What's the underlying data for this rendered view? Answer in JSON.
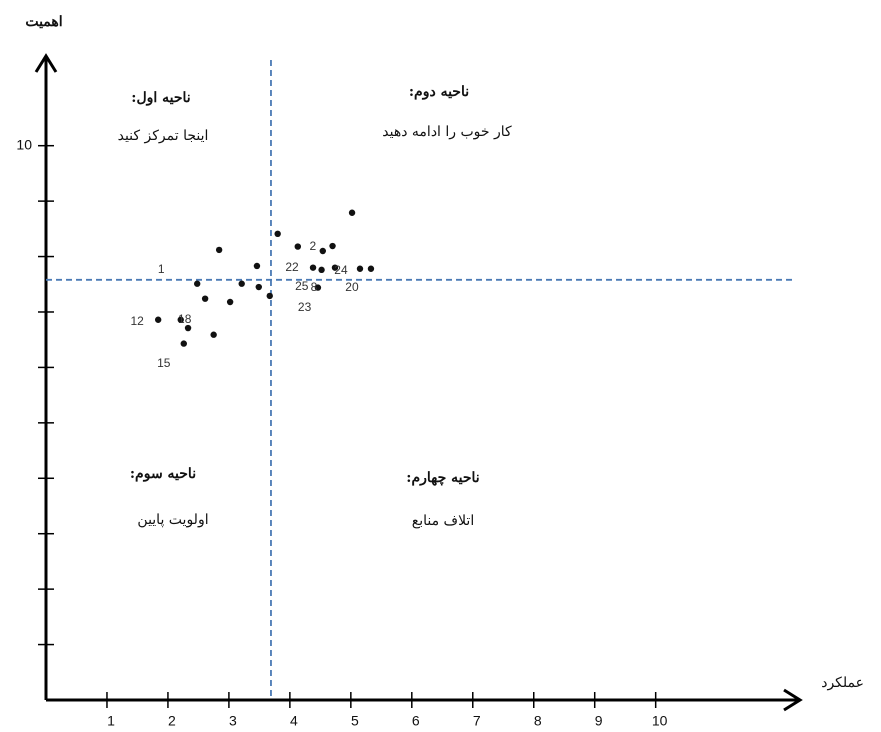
{
  "chart_data": {
    "type": "scatter",
    "x_label": "عملکرد",
    "y_label": "اهمیت",
    "xlim": [
      0,
      12.4
    ],
    "ylim": [
      0,
      11.6
    ],
    "xticks": [
      1,
      2,
      3,
      4,
      5,
      6,
      7,
      8,
      9,
      10
    ],
    "yticks": [
      10
    ],
    "minor_yticks": [
      1,
      2,
      3,
      4,
      5,
      6,
      7,
      8,
      9
    ],
    "divider_x": 3.69,
    "divider_y": 7.58,
    "color": "#111111",
    "divider_color": "#4a7ab5",
    "x": [
      5.02,
      2.84,
      3.8,
      4.13,
      4.54,
      4.7,
      3.46,
      4.38,
      4.52,
      4.74,
      5.15,
      5.33,
      2.48,
      3.21,
      3.49,
      4.46,
      2.61,
      3.02,
      3.67,
      1.84,
      2.21,
      2.33,
      2.75,
      2.26
    ],
    "values": [
      8.79,
      8.12,
      8.41,
      8.18,
      8.1,
      8.19,
      7.83,
      7.8,
      7.76,
      7.8,
      7.78,
      7.78,
      7.51,
      7.51,
      7.45,
      7.44,
      7.24,
      7.18,
      7.29,
      6.86,
      6.86,
      6.71,
      6.59,
      6.43
    ],
    "point_labels": [
      null,
      null,
      null,
      null,
      "2",
      null,
      null,
      "22",
      "23",
      "24",
      null,
      "20",
      "1",
      null,
      null,
      "8",
      null,
      null,
      "25",
      "12",
      "18",
      null,
      null,
      "15"
    ],
    "quadrants": [
      {
        "title": "ناحیه اول:",
        "text": "اینجا تمرکز کنید"
      },
      {
        "title": "ناحیه دوم:",
        "text": "کار خوب را ادامه دهید"
      },
      {
        "title": "ناحیه سوم:",
        "text": "اولویت پایین"
      },
      {
        "title": "ناحیه چهارم:",
        "text": "اتلاف منابع"
      }
    ]
  }
}
